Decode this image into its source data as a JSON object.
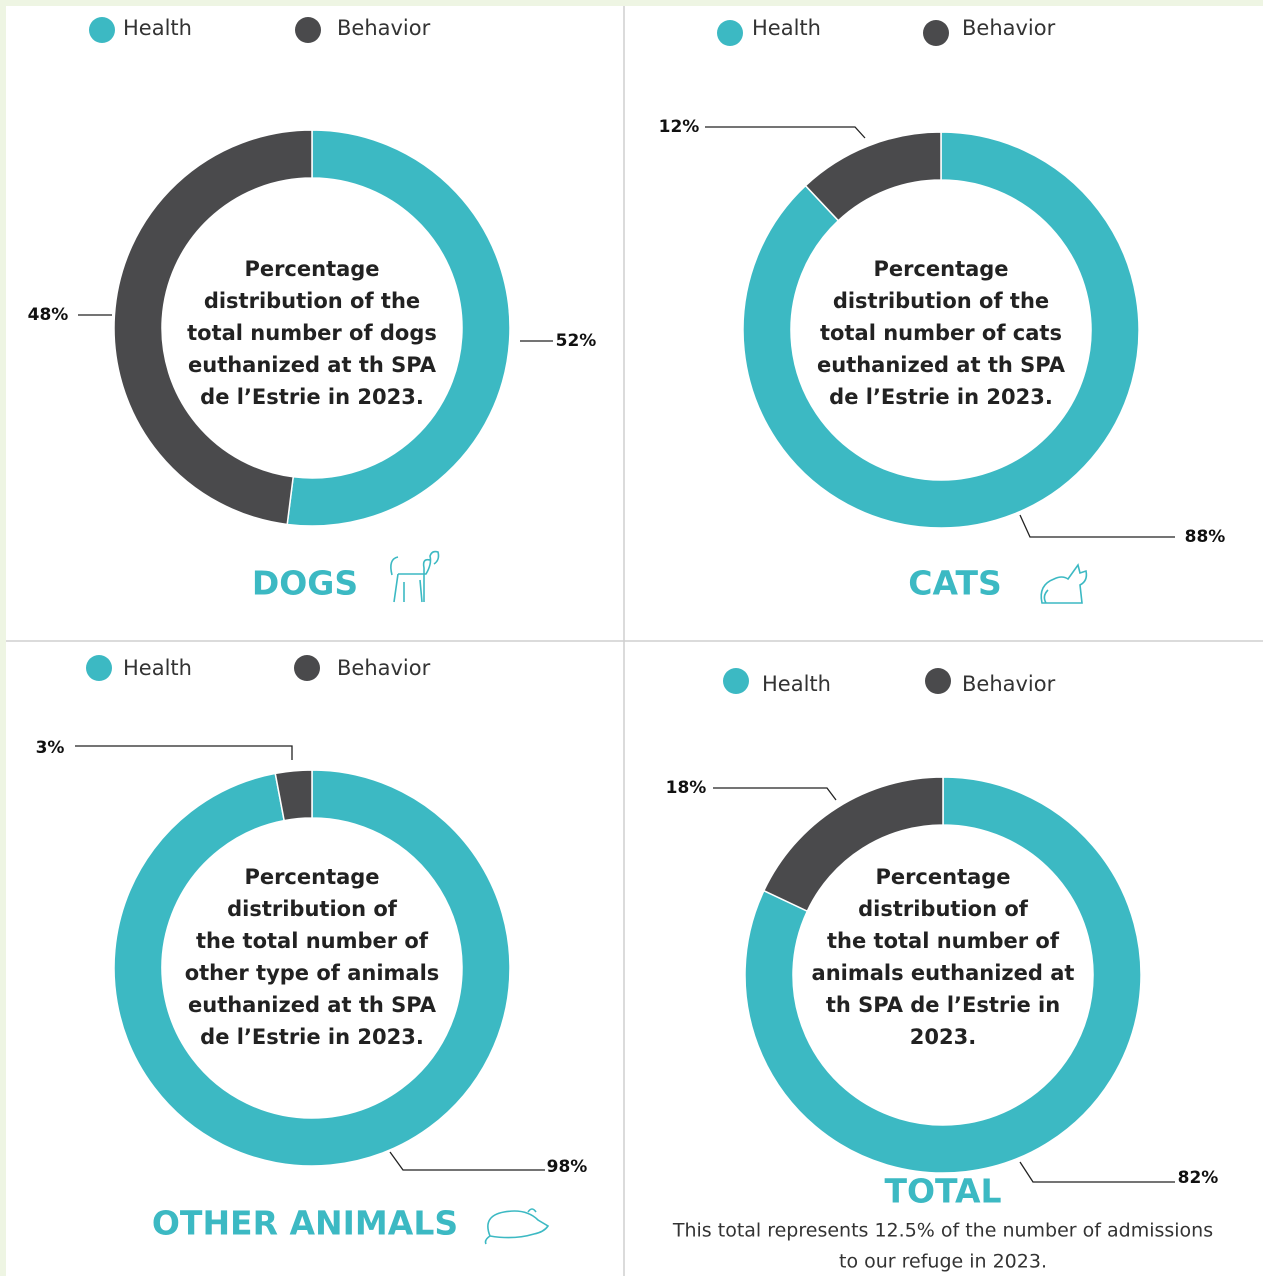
{
  "chart_data": [
    {
      "type": "pie",
      "title": "DOGS",
      "center_text": [
        "Percentage",
        "distribution of the",
        "total number of dogs",
        "euthanized at th SPA",
        "de l’Estrie in 2023."
      ],
      "categories": [
        "Health",
        "Behavior"
      ],
      "values": [
        52,
        48
      ],
      "value_labels": [
        "52%",
        "48%"
      ],
      "colors": [
        "#3cb9c3",
        "#4a4a4c"
      ]
    },
    {
      "type": "pie",
      "title": "CATS",
      "center_text": [
        "Percentage",
        "distribution of the",
        "total number of cats",
        "euthanized at th SPA",
        "de l’Estrie in 2023."
      ],
      "categories": [
        "Health",
        "Behavior"
      ],
      "values": [
        88,
        12
      ],
      "value_labels": [
        "88%",
        "12%"
      ],
      "colors": [
        "#3cb9c3",
        "#4a4a4c"
      ]
    },
    {
      "type": "pie",
      "title": "OTHER ANIMALS",
      "center_text": [
        "Percentage",
        "distribution of",
        "the total number of",
        "other type of animals",
        "euthanized at th SPA",
        "de l’Estrie in 2023."
      ],
      "categories": [
        "Health",
        "Behavior"
      ],
      "values": [
        98,
        3
      ],
      "value_labels": [
        "98%",
        "3%"
      ],
      "colors": [
        "#3cb9c3",
        "#4a4a4c"
      ]
    },
    {
      "type": "pie",
      "title": "TOTAL",
      "center_text": [
        "Percentage",
        "distribution of",
        "the total number of",
        "animals euthanized at",
        "th SPA de l’Estrie in",
        "2023."
      ],
      "categories": [
        "Health",
        "Behavior"
      ],
      "values": [
        82,
        18
      ],
      "value_labels": [
        "82%",
        "18%"
      ],
      "colors": [
        "#3cb9c3",
        "#4a4a4c"
      ],
      "note": [
        "This total represents 12.5% of the number of admissions",
        "to our refuge in 2023."
      ]
    }
  ]
}
